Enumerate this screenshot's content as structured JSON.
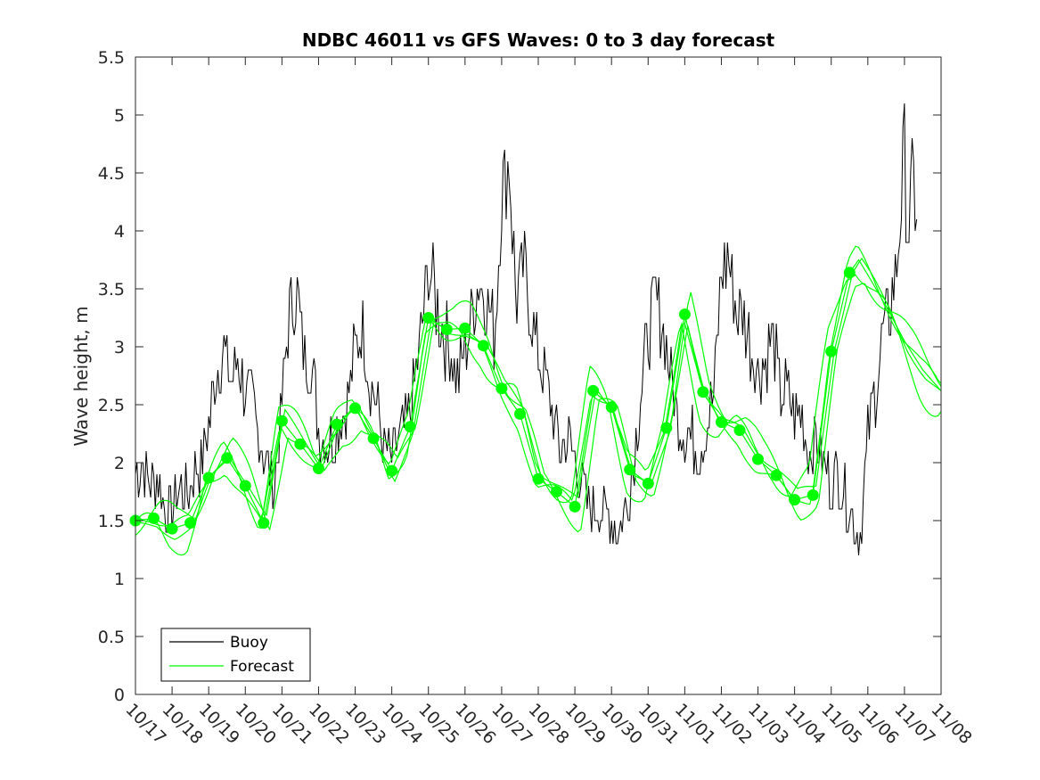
{
  "chart_data": {
    "type": "line",
    "title": "NDBC 46011 vs GFS Waves: 0 to 3 day forecast",
    "xlabel": "",
    "ylabel": "Wave height, m",
    "ylim": [
      0,
      5.5
    ],
    "yticks": [
      0,
      0.5,
      1,
      1.5,
      2,
      2.5,
      3,
      3.5,
      4,
      4.5,
      5,
      5.5
    ],
    "ytick_labels": [
      "0",
      "0.5",
      "1",
      "1.5",
      "2",
      "2.5",
      "3",
      "3.5",
      "4",
      "4.5",
      "5",
      "5.5"
    ],
    "xlim_days": [
      0,
      22
    ],
    "xtick_labels": [
      "10/17",
      "10/18",
      "10/19",
      "10/20",
      "10/21",
      "10/22",
      "10/23",
      "10/24",
      "10/25",
      "10/26",
      "10/27",
      "10/28",
      "10/29",
      "10/30",
      "10/31",
      "11/01",
      "11/02",
      "11/03",
      "11/04",
      "11/05",
      "11/06",
      "11/07",
      "11/08"
    ],
    "grid": false,
    "legend": {
      "position": "bottom-left",
      "entries": [
        {
          "label": "Buoy",
          "color": "#000000"
        },
        {
          "label": "Forecast",
          "color": "#00ff00"
        }
      ]
    },
    "series": [
      {
        "name": "Buoy",
        "color": "#000000",
        "x_days": [
          0,
          0.2,
          0.4,
          0.6,
          0.8,
          1,
          1.2,
          1.4,
          1.6,
          1.8,
          2,
          2.2,
          2.4,
          2.6,
          2.8,
          3,
          3.2,
          3.4,
          3.6,
          3.8,
          4,
          4.2,
          4.4,
          4.6,
          4.8,
          5,
          5.2,
          5.4,
          5.6,
          5.8,
          6,
          6.2,
          6.4,
          6.6,
          6.8,
          7,
          7.2,
          7.4,
          7.6,
          7.8,
          8,
          8.2,
          8.4,
          8.6,
          8.8,
          9,
          9.2,
          9.4,
          9.6,
          9.8,
          10,
          10.2,
          10.4,
          10.6,
          10.8,
          11,
          11.2,
          11.4,
          11.6,
          11.8,
          12,
          12.2,
          12.4,
          12.6,
          12.8,
          13,
          13.2,
          13.4,
          13.6,
          13.8,
          14,
          14.2,
          14.4,
          14.6,
          14.8,
          15,
          15.2,
          15.4,
          15.6,
          15.8,
          16,
          16.2,
          16.4,
          16.6,
          16.8,
          17,
          17.2,
          17.4,
          17.6,
          17.8,
          18,
          18.2,
          18.4,
          18.6,
          18.8,
          19,
          19.2,
          19.4,
          19.6,
          19.8,
          20,
          20.2,
          20.4,
          20.6,
          20.8,
          21,
          21.1,
          21.2,
          21.35
        ],
        "values": [
          1.9,
          2.0,
          1.8,
          1.9,
          1.6,
          1.6,
          1.8,
          1.7,
          1.9,
          2.0,
          2.3,
          2.8,
          3.0,
          2.7,
          2.9,
          2.6,
          2.5,
          2.2,
          2.0,
          1.8,
          2.5,
          3.3,
          3.5,
          2.9,
          2.9,
          2.3,
          2.2,
          2.2,
          2.4,
          2.5,
          3.0,
          3.2,
          2.7,
          2.5,
          2.1,
          2.0,
          2.2,
          2.3,
          2.6,
          3.1,
          3.7,
          3.4,
          3.1,
          3.0,
          2.7,
          3.0,
          3.3,
          3.6,
          3.4,
          3.1,
          4.3,
          4.6,
          3.4,
          3.7,
          3.3,
          2.9,
          2.7,
          2.4,
          2.1,
          2.2,
          2.0,
          1.8,
          1.6,
          1.6,
          1.6,
          1.5,
          1.4,
          1.6,
          2.0,
          2.6,
          3.1,
          3.4,
          3.2,
          2.8,
          2.4,
          2.3,
          2.2,
          2.1,
          2.3,
          2.6,
          3.6,
          3.8,
          3.3,
          3.3,
          3.0,
          2.8,
          2.9,
          3.1,
          2.6,
          2.6,
          2.4,
          2.4,
          2.1,
          2.2,
          2.0,
          1.8,
          1.9,
          1.7,
          1.5,
          1.4,
          2.2,
          2.6,
          3.1,
          3.3,
          3.7,
          4.7,
          3.9,
          4.4,
          4.2
        ],
        "noise_amplitude_m": 0.25,
        "samples_per_day": 24
      },
      {
        "name": "Forecast",
        "color": "#00ff00",
        "marker_values": [
          1.5,
          1.52,
          1.43,
          1.48,
          1.87,
          2.04,
          1.8,
          1.48,
          2.36,
          2.16,
          1.95,
          2.33,
          2.47,
          2.21,
          1.93,
          2.31,
          3.25,
          3.15,
          3.16,
          3.01,
          2.64,
          2.42,
          1.86,
          1.75,
          1.62,
          2.62,
          2.48,
          1.94,
          1.82,
          2.3,
          3.28,
          2.61,
          2.35,
          2.28,
          2.03,
          1.89,
          1.68,
          1.72,
          2.96,
          3.64
        ],
        "marker_x_days": [
          0,
          0.5,
          1,
          1.5,
          2,
          2.5,
          3,
          3.5,
          4,
          4.5,
          5,
          5.5,
          6,
          6.5,
          7,
          7.5,
          8,
          8.5,
          9,
          9.5,
          10,
          10.5,
          11,
          11.5,
          12,
          12.5,
          13,
          13.5,
          14,
          14.5,
          15,
          15.5,
          16,
          16.5,
          17,
          17.5,
          18,
          18.5,
          19,
          19.5
        ],
        "tail_x_days": [
          19.75,
          20,
          20.5,
          21,
          21.5,
          22
        ],
        "tail_values": [
          3.75,
          3.62,
          3.35,
          3.05,
          2.8,
          2.62
        ]
      }
    ]
  }
}
